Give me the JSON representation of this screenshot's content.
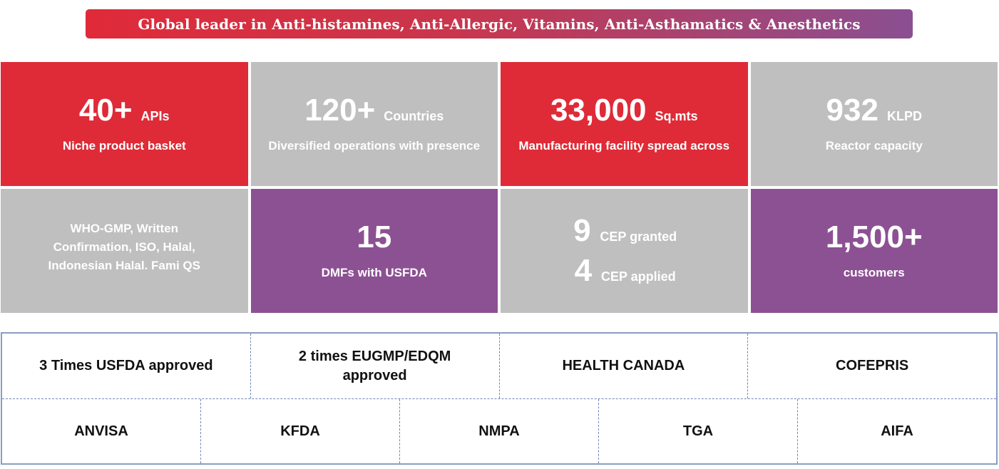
{
  "banner": {
    "title": "Global leader in Anti-histamines, Anti-Allergic, Vitamins, Anti-Asthamatics & Anesthetics",
    "gradient": [
      "#e02a39",
      "#8a4f92"
    ]
  },
  "colors": {
    "red": "#df2b37",
    "gray": "#bfbfbf",
    "purple": "#8c5193",
    "border": "#8a9dc2"
  },
  "stats": [
    {
      "value": "40+",
      "unit": "APIs",
      "caption": "Niche product basket"
    },
    {
      "value": "120+",
      "unit": "Countries",
      "caption": "Diversified operations with presence"
    },
    {
      "value": "33,000",
      "unit": "Sq.mts",
      "caption": "Manufacturing facility spread across"
    },
    {
      "value": "932",
      "unit": "KLPD",
      "caption": "Reactor capacity"
    }
  ],
  "certifications": {
    "text": "WHO-GMP, Written\nConfirmation, ISO, Halal,\nIndonesian Halal. Fami QS"
  },
  "dmf": {
    "value": "15",
    "caption": "DMFs with USFDA"
  },
  "cep": {
    "granted_value": "9",
    "granted_label": "CEP granted",
    "applied_value": "4",
    "applied_label": "CEP applied"
  },
  "customers": {
    "value": "1,500+",
    "caption": "customers"
  },
  "approvals": {
    "row1": [
      "3 Times USFDA approved",
      "2 times EUGMP/EDQM\napproved",
      "HEALTH CANADA",
      "COFEPRIS"
    ],
    "row2": [
      "ANVISA",
      "KFDA",
      "NMPA",
      "TGA",
      "AIFA"
    ]
  }
}
